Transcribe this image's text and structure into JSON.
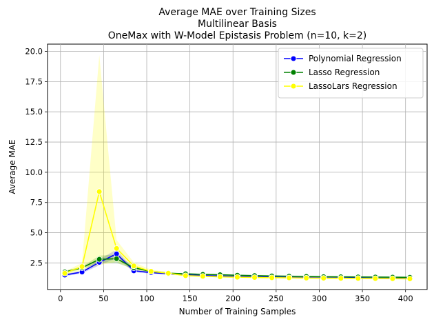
{
  "chart_data": {
    "type": "line",
    "title": [
      "Average MAE over Training Sizes",
      "Multilinear Basis",
      "OneMax with W-Model Epistasis Problem (n=10, k=2)"
    ],
    "xlabel": "Number of Training Samples",
    "ylabel": "Average MAE",
    "xlim": [
      -15,
      425
    ],
    "ylim": [
      0.3,
      20.6
    ],
    "xticks": [
      0,
      50,
      100,
      150,
      200,
      250,
      300,
      350,
      400
    ],
    "yticks": [
      2.5,
      5.0,
      7.5,
      10.0,
      12.5,
      15.0,
      17.5,
      20.0
    ],
    "ytick_labels": [
      "2.5",
      "5.0",
      "7.5",
      "10.0",
      "12.5",
      "15.0",
      "17.5",
      "20.0"
    ],
    "grid": true,
    "legend_position": "top-right",
    "x": [
      5,
      25,
      45,
      65,
      85,
      105,
      125,
      145,
      165,
      185,
      205,
      225,
      245,
      265,
      285,
      305,
      325,
      345,
      365,
      385,
      405
    ],
    "series": [
      {
        "name": "Polynomial Regression",
        "color": "#0000ff",
        "values": [
          1.5,
          1.75,
          2.55,
          3.25,
          1.85,
          1.7,
          1.6,
          1.52,
          1.45,
          1.42,
          1.38,
          1.35,
          1.33,
          1.3,
          1.28,
          1.27,
          1.26,
          1.25,
          1.24,
          1.23,
          1.22
        ],
        "band_lower": [
          1.4,
          1.65,
          2.3,
          2.9,
          1.75,
          1.62,
          1.55,
          1.48,
          1.42,
          1.39,
          1.35,
          1.32,
          1.3,
          1.27,
          1.26,
          1.25,
          1.24,
          1.23,
          1.22,
          1.21,
          1.2
        ],
        "band_upper": [
          1.6,
          1.85,
          2.8,
          3.6,
          1.95,
          1.78,
          1.65,
          1.56,
          1.48,
          1.45,
          1.41,
          1.38,
          1.36,
          1.33,
          1.3,
          1.29,
          1.28,
          1.27,
          1.26,
          1.25,
          1.24
        ]
      },
      {
        "name": "Lasso Regression",
        "color": "#008000",
        "values": [
          1.75,
          2.1,
          2.8,
          2.85,
          2.1,
          1.8,
          1.65,
          1.6,
          1.55,
          1.52,
          1.48,
          1.45,
          1.42,
          1.4,
          1.38,
          1.36,
          1.35,
          1.34,
          1.33,
          1.32,
          1.31
        ],
        "band_lower": [
          1.65,
          2.0,
          2.5,
          2.5,
          2.0,
          1.72,
          1.6,
          1.55,
          1.5,
          1.48,
          1.44,
          1.41,
          1.39,
          1.37,
          1.35,
          1.33,
          1.32,
          1.31,
          1.3,
          1.29,
          1.28
        ],
        "band_upper": [
          1.85,
          2.2,
          3.1,
          3.2,
          2.2,
          1.88,
          1.7,
          1.65,
          1.6,
          1.56,
          1.52,
          1.49,
          1.45,
          1.43,
          1.41,
          1.39,
          1.38,
          1.37,
          1.36,
          1.35,
          1.34
        ]
      },
      {
        "name": "LassoLars Regression",
        "color": "#ffff00",
        "values": [
          1.65,
          2.2,
          8.4,
          3.7,
          2.25,
          1.8,
          1.65,
          1.45,
          1.4,
          1.35,
          1.32,
          1.3,
          1.28,
          1.27,
          1.25,
          1.24,
          1.23,
          1.22,
          1.21,
          1.2,
          1.19
        ],
        "band_lower": [
          1.5,
          1.9,
          2.3,
          2.6,
          1.9,
          1.65,
          1.55,
          1.38,
          1.34,
          1.3,
          1.27,
          1.25,
          1.23,
          1.22,
          1.2,
          1.19,
          1.18,
          1.17,
          1.16,
          1.15,
          1.14
        ],
        "band_upper": [
          1.8,
          2.5,
          19.7,
          4.4,
          2.55,
          1.95,
          1.75,
          1.52,
          1.46,
          1.4,
          1.37,
          1.35,
          1.33,
          1.32,
          1.3,
          1.29,
          1.28,
          1.27,
          1.26,
          1.25,
          1.24
        ]
      }
    ]
  }
}
